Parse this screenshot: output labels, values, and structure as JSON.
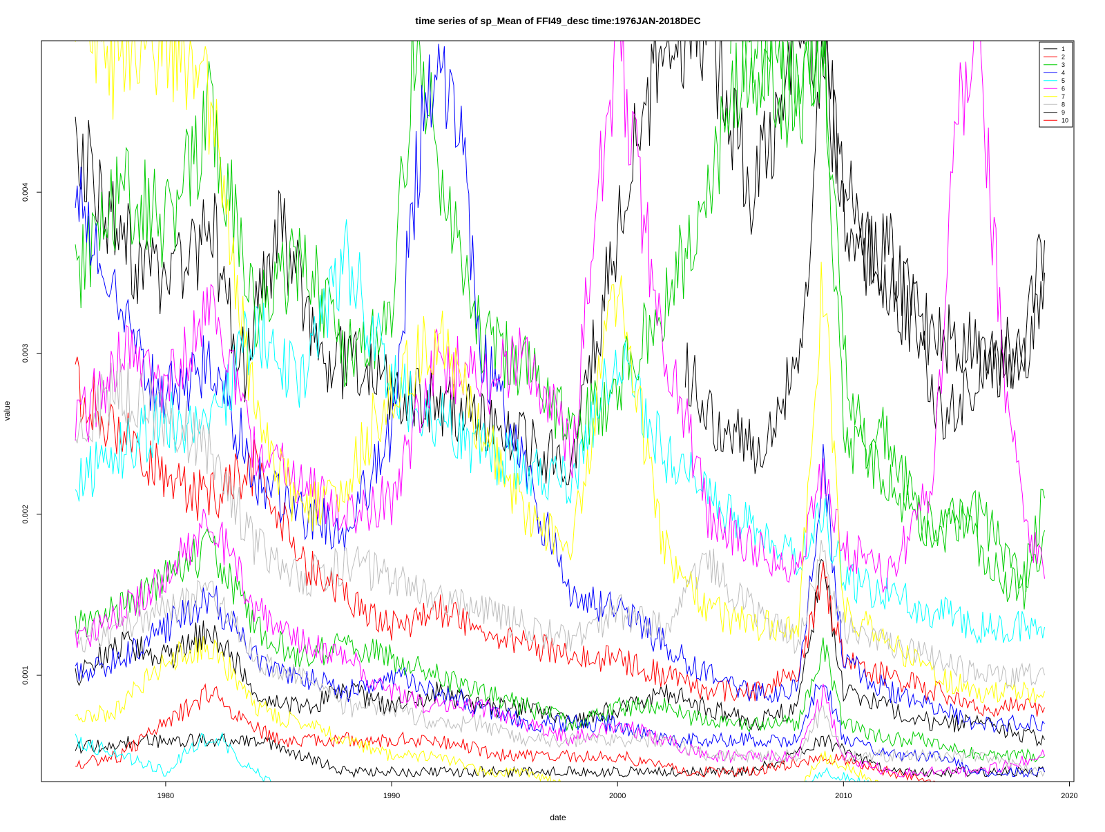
{
  "chart_data": {
    "type": "line",
    "title": "time series of sp_Mean of FFI49_desc time:1976JAN-2018DEC",
    "xlabel": "date",
    "ylabel": "value",
    "xlim": [
      1974.5,
      2020.2
    ],
    "ylim": [
      0.00034,
      0.00494
    ],
    "x_ticks": [
      1980,
      1990,
      2000,
      2010,
      2020
    ],
    "y_ticks": [
      0.001,
      0.002,
      0.003,
      0.004
    ],
    "x_tick_labels": [
      "1980",
      "1990",
      "2000",
      "2010",
      "2020"
    ],
    "y_tick_labels": [
      "0.001",
      "0.002",
      "0.003",
      "0.004"
    ],
    "grid": false,
    "legend_position": "top-right",
    "colors": [
      "#000000",
      "#ff0000",
      "#00cd00",
      "#0000ff",
      "#00ffff",
      "#ff00ff",
      "#ffff00",
      "#bebebe",
      "#000000",
      "#ff0000"
    ],
    "legend": [
      {
        "name": "1",
        "color": "#000000"
      },
      {
        "name": "2",
        "color": "#ff0000"
      },
      {
        "name": "3",
        "color": "#00cd00"
      },
      {
        "name": "4",
        "color": "#0000ff"
      },
      {
        "name": "5",
        "color": "#00ffff"
      },
      {
        "name": "6",
        "color": "#ff00ff"
      },
      {
        "name": "7",
        "color": "#ffff00"
      },
      {
        "name": "8",
        "color": "#bebebe"
      },
      {
        "name": "9",
        "color": "#000000"
      },
      {
        "name": "10",
        "color": "#ff0000"
      }
    ],
    "series": [
      {
        "color": "#000000",
        "x": [
          1976.0,
          1978.0,
          1980.0,
          1982.0,
          1983.5,
          1985.0,
          1987.0,
          1990.0,
          1992.0,
          1995.0,
          1998.0,
          2000.0,
          2002.0,
          2004.0,
          2006.0,
          2008.0,
          2009.1,
          2010.0,
          2012.0,
          2014.0,
          2016.0,
          2018.0,
          2018.9
        ],
        "y": [
          0.0043,
          0.0037,
          0.0034,
          0.0038,
          0.0029,
          0.0038,
          0.003,
          0.0028,
          0.0027,
          0.0025,
          0.0023,
          0.0038,
          0.005,
          0.005,
          0.004,
          0.005,
          0.005,
          0.0038,
          0.0034,
          0.0031,
          0.003,
          0.003,
          0.0037
        ]
      },
      {
        "color": "#000000",
        "x": [
          2003.0,
          2004.0,
          2005.0,
          2006.0,
          2007.0,
          2008.0,
          2008.5,
          2009.1,
          2010.0,
          2011.0,
          2012.0,
          2013.0,
          2014.0,
          2015.0,
          2016.0,
          2017.0,
          2018.0,
          2018.9
        ],
        "y": [
          0.0029,
          0.0026,
          0.0025,
          0.0024,
          0.0026,
          0.0031,
          0.0034,
          0.005,
          0.004,
          0.0037,
          0.0036,
          0.0034,
          0.0027,
          0.0026,
          0.0029,
          0.0029,
          0.003,
          0.0035
        ]
      },
      {
        "color": "#000000",
        "x": [
          1976.0,
          1978.0,
          1980.0,
          1982.0,
          1984.0,
          1986.0,
          1988.0,
          1990.0,
          1992.0,
          1994.0,
          1996.0,
          1998.0,
          2000.0,
          2002.0,
          2004.0,
          2006.0,
          2008.0,
          2009.1,
          2010.0,
          2012.0,
          2014.0,
          2016.0,
          2018.9
        ],
        "y": [
          0.001,
          0.0012,
          0.0011,
          0.0013,
          0.0009,
          0.0008,
          0.0009,
          0.0008,
          0.0009,
          0.0008,
          0.0008,
          0.0007,
          0.0008,
          0.0009,
          0.0008,
          0.0007,
          0.0008,
          0.0017,
          0.0009,
          0.0008,
          0.0007,
          0.0007,
          0.0006
        ]
      },
      {
        "color": "#000000",
        "x": [
          1976.0,
          1980.0,
          1984.0,
          1986.0,
          1988.0,
          1990.0,
          1992.0,
          1995.0,
          1998.0,
          2002.0,
          2006.0,
          2009.1,
          2012.0,
          2016.0,
          2018.9
        ],
        "y": [
          0.00055,
          0.0006,
          0.0006,
          0.0005,
          0.0004,
          0.0004,
          0.0004,
          0.0004,
          0.0004,
          0.0004,
          0.0004,
          0.0006,
          0.0004,
          0.0004,
          0.0004
        ]
      },
      {
        "color": "#ff0000",
        "x": [
          1976.0,
          1978.0,
          1980.0,
          1982.0,
          1984.0,
          1986.0,
          1988.0,
          1990.0,
          1992.0,
          1994.0,
          1996.0,
          1998.0,
          2000.0,
          2002.0,
          2004.0,
          2006.0,
          2008.0,
          2009.1,
          2010.0,
          2012.0,
          2014.0,
          2016.0,
          2018.9
        ],
        "y": [
          0.0028,
          0.0025,
          0.0022,
          0.0021,
          0.0023,
          0.0017,
          0.0015,
          0.0013,
          0.0014,
          0.0013,
          0.0012,
          0.0011,
          0.0011,
          0.001,
          0.0009,
          0.0009,
          0.001,
          0.0016,
          0.0011,
          0.001,
          0.0009,
          0.0008,
          0.0008
        ]
      },
      {
        "color": "#ff0000",
        "x": [
          1976.0,
          1978.0,
          1980.0,
          1982.0,
          1983.5,
          1985.0,
          1987.0,
          1990.0,
          1992.0,
          1995.0,
          1998.0,
          2000.0,
          2003.0,
          2006.0,
          2009.1,
          2012.0,
          2015.0,
          2018.9
        ],
        "y": [
          0.00045,
          0.0005,
          0.0007,
          0.0009,
          0.0007,
          0.0006,
          0.0006,
          0.0006,
          0.0006,
          0.0005,
          0.0005,
          0.0005,
          0.0004,
          0.0004,
          0.0005,
          0.0004,
          0.0003,
          0.0003
        ]
      },
      {
        "color": "#00cd00",
        "x": [
          1976.0,
          1978.0,
          1980.0,
          1982.0,
          1984.0,
          1986.0,
          1988.0,
          1990.0,
          1991.0,
          1992.0,
          1994.0,
          1996.0,
          1998.0,
          2000.0,
          2002.0,
          2004.0,
          2006.0,
          2008.0,
          2009.1,
          2010.0,
          2012.0,
          2014.0,
          2016.0,
          2018.0,
          2018.9
        ],
        "y": [
          0.0035,
          0.004,
          0.0038,
          0.0045,
          0.0032,
          0.0036,
          0.003,
          0.0032,
          0.005,
          0.0042,
          0.0031,
          0.0029,
          0.0025,
          0.0028,
          0.0033,
          0.004,
          0.005,
          0.0045,
          0.005,
          0.0025,
          0.0022,
          0.0019,
          0.002,
          0.0016,
          0.0021
        ]
      },
      {
        "color": "#00cd00",
        "x": [
          2005.0,
          2006.0,
          2007.0,
          2008.0,
          2009.1,
          2010.0,
          2011.0,
          2012.0,
          2013.0,
          2014.0,
          2015.0,
          2016.0,
          2017.0,
          2018.0,
          2018.9
        ],
        "y": [
          0.005,
          0.0048,
          0.005,
          0.0046,
          0.005,
          0.003,
          0.0024,
          0.0025,
          0.0021,
          0.0018,
          0.002,
          0.0018,
          0.0016,
          0.0015,
          0.0019
        ]
      },
      {
        "color": "#00cd00",
        "x": [
          1976.0,
          1978.0,
          1980.0,
          1982.0,
          1984.0,
          1986.0,
          1988.0,
          1990.0,
          1992.0,
          1994.0,
          1996.0,
          1998.0,
          2000.0,
          2002.0,
          2004.0,
          2006.0,
          2008.0,
          2009.1,
          2010.0,
          2012.0,
          2014.0,
          2016.0,
          2018.9
        ],
        "y": [
          0.0013,
          0.0014,
          0.0016,
          0.0018,
          0.0013,
          0.0011,
          0.0012,
          0.0011,
          0.001,
          0.0009,
          0.0008,
          0.0007,
          0.0008,
          0.0008,
          0.0007,
          0.0007,
          0.0007,
          0.0012,
          0.0007,
          0.0006,
          0.0006,
          0.0005,
          0.0005
        ]
      },
      {
        "color": "#0000ff",
        "x": [
          1976.0,
          1978.0,
          1980.0,
          1982.0,
          1984.0,
          1986.0,
          1988.0,
          1990.0,
          1991.0,
          1992.0,
          1993.0,
          1994.0,
          1996.0,
          1998.0,
          2000.0,
          2002.0,
          2004.0,
          2006.0,
          2008.0,
          2009.1,
          2010.0,
          2012.0,
          2014.0,
          2016.0,
          2018.9
        ],
        "y": [
          0.004,
          0.0032,
          0.0027,
          0.003,
          0.0022,
          0.002,
          0.0019,
          0.0025,
          0.004,
          0.005,
          0.0044,
          0.003,
          0.0022,
          0.0015,
          0.0014,
          0.0012,
          0.001,
          0.0009,
          0.0009,
          0.0023,
          0.0011,
          0.0009,
          0.0008,
          0.0007,
          0.0007
        ]
      },
      {
        "color": "#0000ff",
        "x": [
          1976.0,
          1978.0,
          1980.0,
          1982.0,
          1984.0,
          1986.0,
          1988.0,
          1990.0,
          1992.0,
          1994.0,
          1996.0,
          1998.0,
          2000.0,
          2002.0,
          2004.0,
          2006.0,
          2008.0,
          2009.1,
          2010.0,
          2012.0,
          2014.0,
          2016.0,
          2018.9
        ],
        "y": [
          0.001,
          0.0011,
          0.0013,
          0.0015,
          0.0011,
          0.001,
          0.0009,
          0.001,
          0.0009,
          0.0008,
          0.0007,
          0.0007,
          0.0007,
          0.0006,
          0.0006,
          0.0006,
          0.0006,
          0.001,
          0.0006,
          0.0005,
          0.0005,
          0.0004,
          0.0004
        ]
      },
      {
        "color": "#00ffff",
        "x": [
          1976.0,
          1978.0,
          1980.0,
          1982.0,
          1984.0,
          1986.0,
          1988.0,
          1990.0,
          1992.0,
          1994.0,
          1996.0,
          1998.0,
          2000.0,
          2002.0,
          2004.0,
          2006.0,
          2008.0,
          2009.1,
          2010.0,
          2012.0,
          2014.0,
          2016.0,
          2018.9
        ],
        "y": [
          0.0022,
          0.0024,
          0.0026,
          0.0025,
          0.0032,
          0.0028,
          0.0036,
          0.0028,
          0.0026,
          0.0024,
          0.0023,
          0.0022,
          0.003,
          0.0024,
          0.0021,
          0.0019,
          0.0017,
          0.002,
          0.0016,
          0.0015,
          0.0014,
          0.0013,
          0.0013
        ]
      },
      {
        "color": "#00ffff",
        "x": [
          1976.0,
          1978.0,
          1980.0,
          1981.5,
          1982.5,
          1983.0,
          1985.0,
          1988.0,
          1992.0,
          1996.0,
          2000.0,
          2004.0,
          2008.0,
          2009.1,
          2012.0,
          2016.0,
          2018.9
        ],
        "y": [
          0.0006,
          0.0005,
          0.0004,
          0.0006,
          0.0006,
          0.0005,
          0.0003,
          0.0003,
          0.0003,
          0.0003,
          0.0003,
          0.0003,
          0.0003,
          0.0004,
          0.0003,
          0.0003,
          0.0003
        ]
      },
      {
        "color": "#ff00ff",
        "x": [
          1976.0,
          1978.0,
          1980.0,
          1982.0,
          1984.0,
          1986.0,
          1988.0,
          1990.0,
          1992.0,
          1994.0,
          1996.0,
          1998.0,
          1999.0,
          2000.0,
          2001.0,
          2002.0,
          2003.0,
          2004.0,
          2006.0,
          2008.0,
          2009.1,
          2010.0,
          2012.0,
          2014.0,
          2015.0,
          2016.0,
          2017.0,
          2018.0,
          2018.9
        ],
        "y": [
          0.0025,
          0.003,
          0.0028,
          0.0033,
          0.0024,
          0.0022,
          0.002,
          0.0021,
          0.003,
          0.0028,
          0.003,
          0.0024,
          0.0038,
          0.005,
          0.004,
          0.003,
          0.0026,
          0.002,
          0.0018,
          0.0016,
          0.0023,
          0.0018,
          0.0016,
          0.0022,
          0.0044,
          0.005,
          0.003,
          0.002,
          0.0016
        ]
      },
      {
        "color": "#ff00ff",
        "x": [
          1976.0,
          1978.0,
          1980.0,
          1982.0,
          1984.0,
          1986.0,
          1988.0,
          1990.0,
          1992.0,
          1994.0,
          1996.0,
          1998.0,
          2000.0,
          2002.0,
          2004.0,
          2006.0,
          2008.0,
          2009.1,
          2010.0,
          2012.0,
          2014.0,
          2016.0,
          2018.9
        ],
        "y": [
          0.0012,
          0.0014,
          0.0016,
          0.002,
          0.0014,
          0.0012,
          0.0011,
          0.0009,
          0.0008,
          0.0008,
          0.0007,
          0.0006,
          0.0007,
          0.0006,
          0.0005,
          0.0005,
          0.0005,
          0.0009,
          0.0005,
          0.0004,
          0.0004,
          0.0004,
          0.0005
        ]
      },
      {
        "color": "#ffff00",
        "x": [
          1976.0,
          1978.0,
          1980.0,
          1982.0,
          1984.0,
          1986.0,
          1988.0,
          1990.0,
          1992.0,
          1994.0,
          1996.0,
          1998.0,
          2000.0,
          2002.0,
          2004.0,
          2006.0,
          2008.0,
          2009.1,
          2010.0,
          2012.0,
          2014.0,
          2016.0,
          2018.9
        ],
        "y": [
          0.005,
          0.0048,
          0.005,
          0.0045,
          0.0026,
          0.002,
          0.0022,
          0.0028,
          0.0031,
          0.0025,
          0.002,
          0.0018,
          0.0035,
          0.0018,
          0.0014,
          0.0013,
          0.0013,
          0.0035,
          0.0014,
          0.0012,
          0.001,
          0.0009,
          0.0009
        ]
      },
      {
        "color": "#ffff00",
        "x": [
          1976.0,
          1978.0,
          1980.0,
          1982.0,
          1984.0,
          1986.0,
          1988.0,
          1990.0,
          1992.0,
          1994.0,
          1996.0,
          1998.0,
          2000.0,
          2004.0,
          2008.0,
          2009.1,
          2012.0,
          2016.0,
          2018.9
        ],
        "y": [
          0.0007,
          0.0008,
          0.0011,
          0.0012,
          0.0008,
          0.0007,
          0.0006,
          0.0005,
          0.0005,
          0.0004,
          0.0004,
          0.0003,
          0.0003,
          0.0003,
          0.0003,
          0.0005,
          0.0003,
          0.0003,
          0.0003
        ]
      },
      {
        "color": "#bebebe",
        "x": [
          1976.0,
          1978.0,
          1980.0,
          1982.0,
          1984.0,
          1986.0,
          1988.0,
          1990.0,
          1992.0,
          1994.0,
          1996.0,
          1998.0,
          2000.0,
          2002.0,
          2004.0,
          2006.0,
          2008.0,
          2009.1,
          2010.0,
          2012.0,
          2014.0,
          2016.0,
          2018.9
        ],
        "y": [
          0.0025,
          0.0028,
          0.0026,
          0.0024,
          0.0018,
          0.0016,
          0.0017,
          0.0016,
          0.0015,
          0.0014,
          0.0013,
          0.0012,
          0.0014,
          0.0013,
          0.0017,
          0.0014,
          0.0012,
          0.0018,
          0.0013,
          0.0012,
          0.0011,
          0.001,
          0.001
        ]
      },
      {
        "color": "#bebebe",
        "x": [
          1976.0,
          1978.0,
          1980.0,
          1982.0,
          1984.0,
          1986.0,
          1988.0,
          1990.0,
          1992.0,
          1994.0,
          1996.0,
          1998.0,
          2000.0,
          2002.0,
          2004.0,
          2006.0,
          2008.0,
          2009.1,
          2010.0,
          2012.0,
          2014.0,
          2016.0,
          2018.9
        ],
        "y": [
          0.0012,
          0.0013,
          0.0014,
          0.0015,
          0.0011,
          0.001,
          0.0008,
          0.0008,
          0.0007,
          0.0007,
          0.0006,
          0.0006,
          0.0006,
          0.0006,
          0.0005,
          0.0005,
          0.0005,
          0.0008,
          0.0005,
          0.0005,
          0.0005,
          0.0005,
          0.0004
        ]
      }
    ]
  }
}
